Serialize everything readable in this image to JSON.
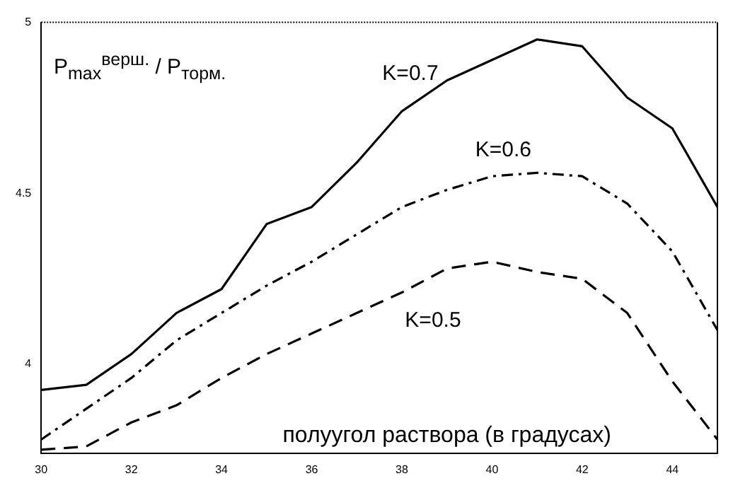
{
  "chart_data": {
    "type": "line",
    "xlabel": "полуугол раствора (в градусах)",
    "ylabel": "P$_{max}$$^{верш.}$ / P$_{торм.}$",
    "x": [
      30,
      31,
      32,
      33,
      34,
      35,
      36,
      37,
      38,
      39,
      40,
      41,
      42,
      43,
      44,
      45
    ],
    "series": [
      {
        "name": "K=0.7",
        "color": "#000000",
        "line_style": "solid",
        "values": [
          3.925,
          3.94,
          4.03,
          4.15,
          4.22,
          4.41,
          4.46,
          4.59,
          4.74,
          4.83,
          4.89,
          4.95,
          4.93,
          4.78,
          4.69,
          4.46
        ]
      },
      {
        "name": "K=0.6",
        "color": "#000000",
        "line_style": "dashdot",
        "values": [
          3.78,
          3.87,
          3.96,
          4.07,
          4.15,
          4.23,
          4.3,
          4.38,
          4.46,
          4.51,
          4.55,
          4.56,
          4.55,
          4.47,
          4.33,
          4.1
        ]
      },
      {
        "name": "K=0.5",
        "color": "#000000",
        "line_style": "dashed",
        "values": [
          3.75,
          3.76,
          3.83,
          3.88,
          3.96,
          4.03,
          4.09,
          4.15,
          4.21,
          4.28,
          4.3,
          4.27,
          4.25,
          4.15,
          3.95,
          3.78
        ]
      }
    ],
    "xlim": [
      30,
      45
    ],
    "xticks": [
      30,
      32,
      34,
      36,
      38,
      40,
      42,
      44
    ],
    "ylim": [
      3.74,
      5
    ],
    "yticks": [
      4,
      4.5,
      5
    ],
    "grid": false,
    "legend": false,
    "marker": "none"
  }
}
